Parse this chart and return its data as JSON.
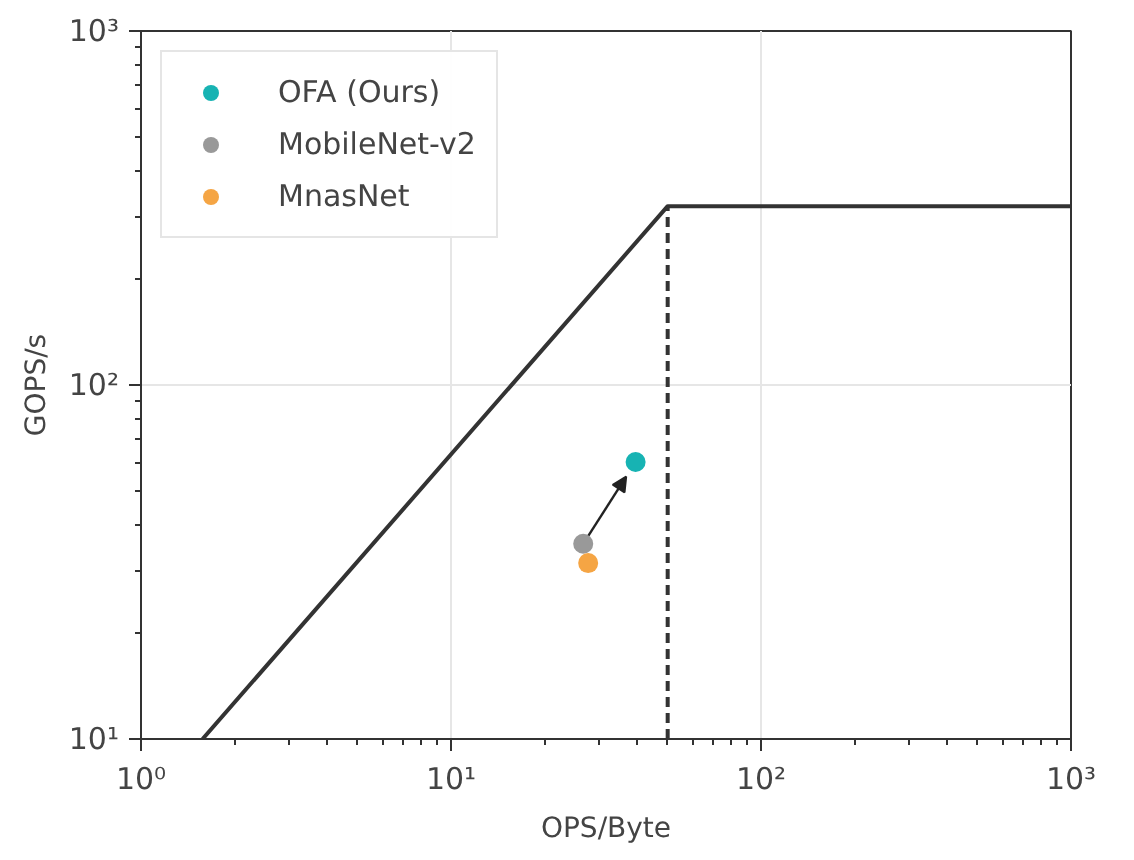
{
  "chart_data": {
    "type": "scatter",
    "xlabel": "OPS/Byte",
    "ylabel": "GOPS/s",
    "log": "xy",
    "xlim": [
      1,
      1000
    ],
    "ylim": [
      10,
      1000
    ],
    "xticks": [
      {
        "value": 1,
        "label": "10⁰"
      },
      {
        "value": 10,
        "label": "10¹"
      },
      {
        "value": 100,
        "label": "10²"
      },
      {
        "value": 1000,
        "label": "10³"
      }
    ],
    "yticks": [
      {
        "value": 10,
        "label": "10¹"
      },
      {
        "value": 100,
        "label": "10²"
      },
      {
        "value": 1000,
        "label": "10³"
      }
    ],
    "grid": true,
    "legend": "top left",
    "marker": "circle",
    "series": [
      {
        "name": "OFA (Ours)",
        "color": "#17b3b3",
        "x": [
          39.4
        ],
        "values": [
          60.6
        ]
      },
      {
        "name": "MobileNet-v2",
        "color": "#999999",
        "x": [
          26.7
        ],
        "values": [
          35.6
        ]
      },
      {
        "name": "MnasNet",
        "color": "#f5a544",
        "x": [
          27.7
        ],
        "values": [
          31.4
        ]
      },
      {
        "type": "line",
        "color": "#333333",
        "line_style": "solid",
        "marker": "none",
        "x": [
          1.58,
          50,
          1000
        ],
        "values": [
          10,
          320,
          320
        ]
      },
      {
        "type": "line",
        "color": "#333333",
        "line_style": "dashed",
        "marker": "none",
        "x": [
          50,
          50
        ],
        "values": [
          10,
          320
        ]
      }
    ]
  }
}
